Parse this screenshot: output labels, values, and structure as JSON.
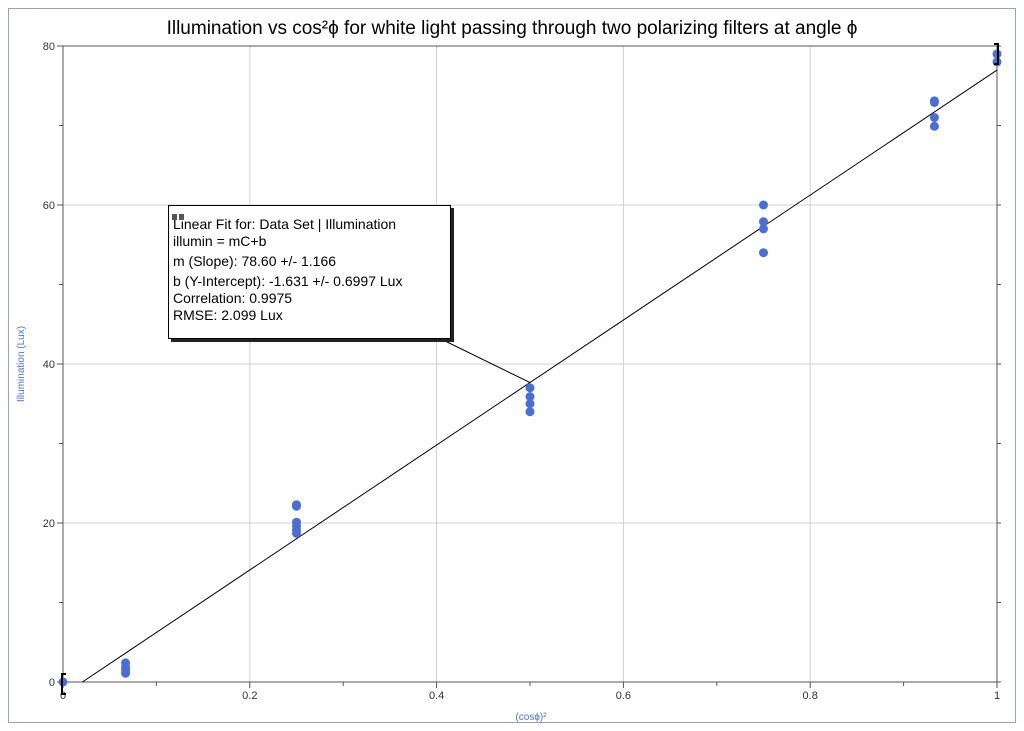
{
  "chart_data": {
    "type": "scatter",
    "title": "Illumination vs cos²ϕ for white light passing through two polarizing filters at angle   ϕ",
    "xlabel": "(cosϕ)²",
    "ylabel": "Illumination (Lux)",
    "xlim": [
      0,
      1
    ],
    "ylim": [
      0,
      80
    ],
    "x_ticks": [
      "0",
      "0.2",
      "0.4",
      "0.6",
      "0.8",
      "1"
    ],
    "y_ticks": [
      "0",
      "20",
      "40",
      "60",
      "80"
    ],
    "grid": true,
    "colors": {
      "points": "#4a6fd4",
      "fit_line": "#000000",
      "grid": "#d0d0d0"
    },
    "series": [
      {
        "points": [
          [
            0,
            0
          ],
          [
            0.067,
            2.4
          ],
          [
            0.067,
            1.9
          ],
          [
            0.067,
            1.5
          ],
          [
            0.067,
            1.1
          ],
          [
            0.25,
            22.3
          ],
          [
            0.25,
            22.1
          ],
          [
            0.25,
            20.1
          ],
          [
            0.25,
            19.6
          ],
          [
            0.25,
            19.1
          ],
          [
            0.25,
            18.7
          ],
          [
            0.5,
            37.0
          ],
          [
            0.5,
            35.9
          ],
          [
            0.5,
            35.0
          ],
          [
            0.5,
            34.0
          ],
          [
            0.75,
            60.0
          ],
          [
            0.75,
            57.9
          ],
          [
            0.75,
            57.0
          ],
          [
            0.75,
            54.0
          ],
          [
            0.933,
            73.1
          ],
          [
            0.933,
            72.9
          ],
          [
            0.933,
            71.0
          ],
          [
            0.933,
            69.9
          ],
          [
            1.0,
            79.0
          ],
          [
            1.0,
            78.0
          ]
        ]
      }
    ],
    "fit": {
      "slope": 78.6,
      "intercept": -1.631
    },
    "fit_box": {
      "line1": "Linear Fit for: Data Set | Illumination",
      "line2": "illumin = mC+b",
      "line3": "m (Slope): 78.60 +/- 1.166",
      "line4": "b (Y-Intercept): -1.631 +/- 0.6997 Lux",
      "line5": "Correlation: 0.9975",
      "line6": "RMSE: 2.099 Lux"
    }
  }
}
